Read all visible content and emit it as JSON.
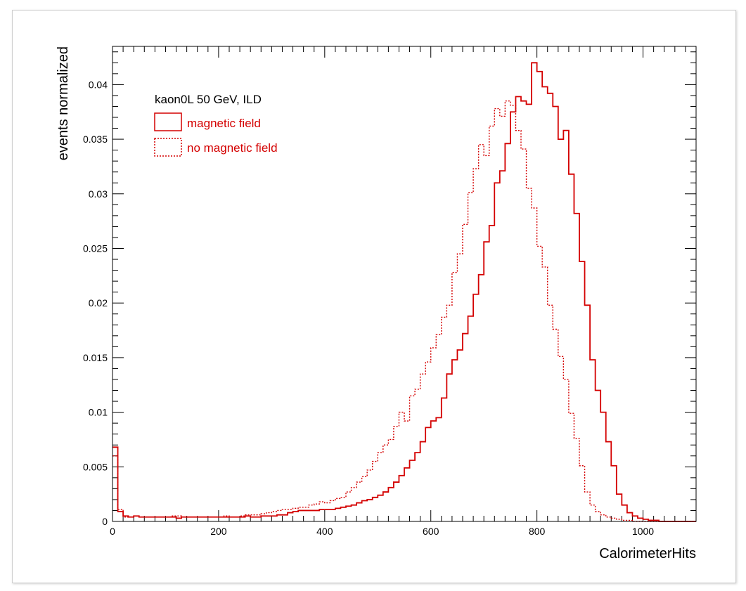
{
  "chart_data": {
    "type": "histogram",
    "xlabel": "CalorimeterHits",
    "ylabel": "events normalized",
    "xlim": [
      0,
      1100
    ],
    "ylim": [
      0,
      0.0435
    ],
    "x_ticks": [
      0,
      200,
      400,
      600,
      800,
      1000
    ],
    "x_tick_labels": [
      "0",
      "200",
      "400",
      "600",
      "800",
      "1000"
    ],
    "y_ticks": [
      0,
      0.005,
      0.01,
      0.015,
      0.02,
      0.025,
      0.03,
      0.035,
      0.04
    ],
    "y_tick_labels": [
      "0",
      "0.005",
      "0.01",
      "0.015",
      "0.02",
      "0.025",
      "0.03",
      "0.035",
      "0.04"
    ],
    "bin_width": 10,
    "legend": {
      "header": "kaon0L 50 GeV, ILD",
      "entries": [
        "magnetic field",
        "no magnetic field"
      ],
      "placement": "top-left"
    },
    "series": [
      {
        "name": "magnetic field",
        "color": "#d40000",
        "style": "solid",
        "values": [
          0.0068,
          0.0009,
          0.0005,
          0.0004,
          0.0005,
          0.0004,
          0.0004,
          0.0004,
          0.0004,
          0.0004,
          0.0004,
          0.0004,
          0.0003,
          0.0004,
          0.0004,
          0.0004,
          0.0004,
          0.0004,
          0.0004,
          0.0004,
          0.0004,
          0.0004,
          0.0004,
          0.0004,
          0.0004,
          0.0005,
          0.0004,
          0.0004,
          0.0005,
          0.0005,
          0.0005,
          0.0006,
          0.0006,
          0.0008,
          0.0009,
          0.001,
          0.001,
          0.001,
          0.001,
          0.0011,
          0.0011,
          0.0011,
          0.0012,
          0.0013,
          0.0014,
          0.0015,
          0.0017,
          0.0019,
          0.002,
          0.0022,
          0.0024,
          0.0027,
          0.0031,
          0.0036,
          0.0042,
          0.0049,
          0.0056,
          0.0063,
          0.0073,
          0.0086,
          0.0092,
          0.0095,
          0.0113,
          0.0135,
          0.0148,
          0.0157,
          0.0172,
          0.0188,
          0.0208,
          0.0226,
          0.0256,
          0.0271,
          0.031,
          0.0321,
          0.0346,
          0.0375,
          0.0389,
          0.0385,
          0.0382,
          0.042,
          0.0412,
          0.0398,
          0.0392,
          0.038,
          0.035,
          0.0358,
          0.0318,
          0.0282,
          0.0238,
          0.0198,
          0.0148,
          0.012,
          0.01,
          0.0073,
          0.0051,
          0.0025,
          0.0015,
          0.0008,
          0.0005,
          0.0003,
          0.0002,
          0.0001,
          0.0001,
          0.0,
          0.0,
          0.0,
          0.0,
          0.0,
          0.0,
          0.0
        ]
      },
      {
        "name": "no magnetic field",
        "color": "#d40000",
        "style": "dotted",
        "values": [
          0.006,
          0.0011,
          0.0004,
          0.0004,
          0.0005,
          0.0004,
          0.0004,
          0.0004,
          0.0004,
          0.0004,
          0.0004,
          0.0005,
          0.0005,
          0.0004,
          0.0004,
          0.0004,
          0.0004,
          0.0004,
          0.0004,
          0.0004,
          0.0004,
          0.0005,
          0.0004,
          0.0004,
          0.0005,
          0.0006,
          0.0006,
          0.0006,
          0.0007,
          0.0008,
          0.0009,
          0.001,
          0.0011,
          0.0011,
          0.0012,
          0.0013,
          0.0013,
          0.0015,
          0.0016,
          0.0018,
          0.0017,
          0.0019,
          0.0021,
          0.0022,
          0.0027,
          0.0031,
          0.0036,
          0.0041,
          0.0047,
          0.0055,
          0.0063,
          0.007,
          0.0075,
          0.0087,
          0.01,
          0.0092,
          0.0115,
          0.0121,
          0.0135,
          0.0146,
          0.0159,
          0.0171,
          0.0187,
          0.0198,
          0.0228,
          0.0245,
          0.0272,
          0.0301,
          0.0323,
          0.0345,
          0.0335,
          0.0362,
          0.0378,
          0.0371,
          0.0385,
          0.0381,
          0.0358,
          0.0341,
          0.0305,
          0.0287,
          0.0252,
          0.0233,
          0.0198,
          0.0176,
          0.0151,
          0.013,
          0.0099,
          0.0076,
          0.0051,
          0.0027,
          0.0015,
          0.0009,
          0.0006,
          0.0004,
          0.0003,
          0.0002,
          0.0001,
          0.0001,
          0.0,
          0.0,
          0.0,
          0.0,
          0.0,
          0.0,
          0.0,
          0.0,
          0.0,
          0.0,
          0.0,
          0.0
        ]
      }
    ]
  }
}
